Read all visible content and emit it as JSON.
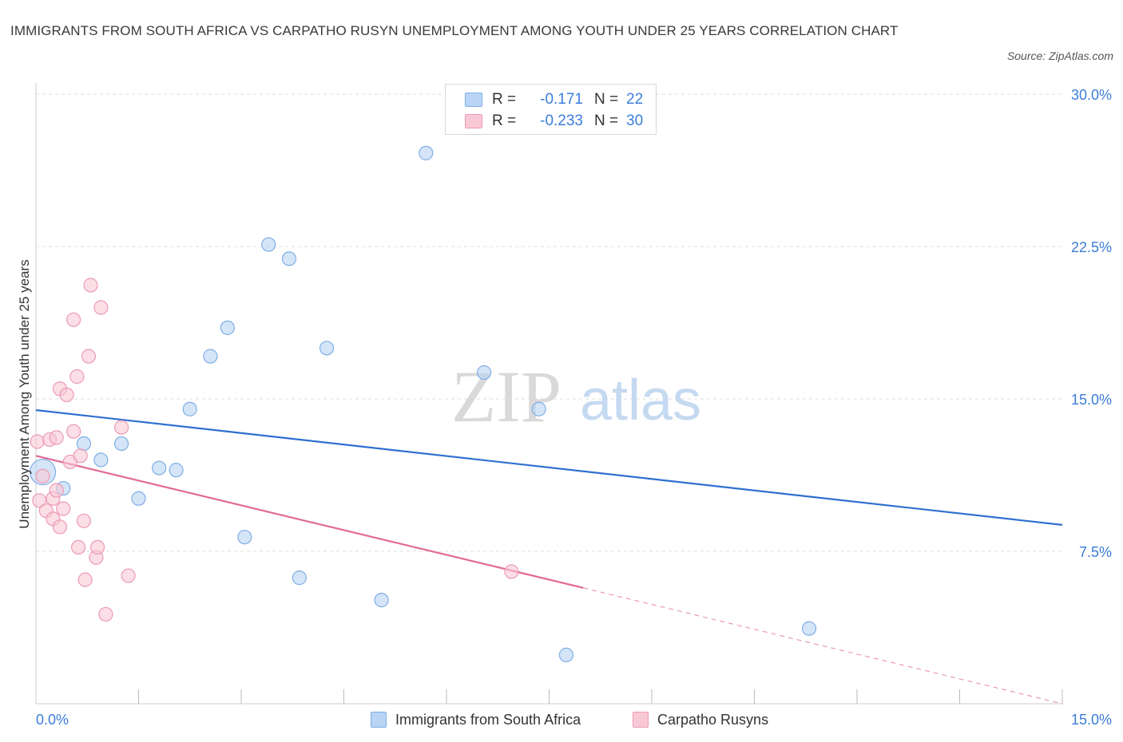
{
  "title": "IMMIGRANTS FROM SOUTH AFRICA VS CARPATHO RUSYN UNEMPLOYMENT AMONG YOUTH UNDER 25 YEARS CORRELATION CHART",
  "source": "Source: ZipAtlas.com",
  "watermark": {
    "zip": "ZIP",
    "atlas": "atlas"
  },
  "colors": {
    "blue_fill": "#b9d4f4",
    "blue_stroke": "#7eaee6",
    "blue_line": "#2f6fd0",
    "pink_fill": "#f9c8d6",
    "pink_stroke": "#ec9ab5",
    "pink_line": "#e26a93",
    "axis_label": "#3b7dd8",
    "grid": "#dddddd"
  },
  "legend": {
    "rows": [
      {
        "series": "Immigrants from South Africa",
        "r_label": "R =",
        "r_value": "-0.171",
        "n_label": "N =",
        "n_value": "22"
      },
      {
        "series": "Carpatho Rusyns",
        "r_label": "R =",
        "r_value": "-0.233",
        "n_label": "N =",
        "n_value": "30"
      }
    ]
  },
  "chart_data": {
    "type": "scatter",
    "title": "IMMIGRANTS FROM SOUTH AFRICA VS CARPATHO RUSYN UNEMPLOYMENT AMONG YOUTH UNDER 25 YEARS CORRELATION CHART",
    "xlabel": "",
    "ylabel": "Unemployment Among Youth under 25 years",
    "xlim": [
      0,
      15
    ],
    "ylim": [
      0,
      30
    ],
    "x_tick_labels": [
      {
        "value": 0,
        "label": "0.0%"
      },
      {
        "value": 15,
        "label": "15.0%"
      }
    ],
    "y_tick_labels": [
      {
        "value": 7.5,
        "label": "7.5%"
      },
      {
        "value": 15,
        "label": "15.0%"
      },
      {
        "value": 22.5,
        "label": "22.5%"
      },
      {
        "value": 30,
        "label": "30.0%"
      }
    ],
    "x_minor_ticks": [
      1.5,
      3.0,
      4.5,
      6.0,
      7.5,
      9.0,
      10.5,
      12.0,
      13.5,
      15.0
    ],
    "grid": true,
    "legend_position": "top-center",
    "series": [
      {
        "name": "Immigrants from South Africa",
        "color": "blue",
        "points": [
          {
            "x": 0.1,
            "y": 11.4,
            "large": true
          },
          {
            "x": 0.4,
            "y": 10.6
          },
          {
            "x": 0.7,
            "y": 12.8
          },
          {
            "x": 0.95,
            "y": 12.0
          },
          {
            "x": 1.25,
            "y": 12.8
          },
          {
            "x": 1.5,
            "y": 10.1
          },
          {
            "x": 1.8,
            "y": 11.6
          },
          {
            "x": 2.05,
            "y": 11.5
          },
          {
            "x": 2.25,
            "y": 14.5
          },
          {
            "x": 2.55,
            "y": 17.1
          },
          {
            "x": 2.8,
            "y": 18.5
          },
          {
            "x": 3.05,
            "y": 8.2
          },
          {
            "x": 3.4,
            "y": 22.6
          },
          {
            "x": 3.7,
            "y": 21.9
          },
          {
            "x": 3.85,
            "y": 6.2
          },
          {
            "x": 4.25,
            "y": 17.5
          },
          {
            "x": 5.05,
            "y": 5.1
          },
          {
            "x": 5.7,
            "y": 27.1
          },
          {
            "x": 6.55,
            "y": 16.3
          },
          {
            "x": 7.35,
            "y": 14.5
          },
          {
            "x": 7.75,
            "y": 2.4
          },
          {
            "x": 11.3,
            "y": 3.7
          }
        ],
        "trend": {
          "x0": 0,
          "y0": 14.45,
          "x1": 15,
          "y1": 8.8
        }
      },
      {
        "name": "Carpatho Rusyns",
        "color": "pink",
        "points": [
          {
            "x": 0.02,
            "y": 12.9
          },
          {
            "x": 0.05,
            "y": 10.0
          },
          {
            "x": 0.1,
            "y": 11.2
          },
          {
            "x": 0.15,
            "y": 9.5
          },
          {
            "x": 0.2,
            "y": 13.0
          },
          {
            "x": 0.25,
            "y": 10.1
          },
          {
            "x": 0.25,
            "y": 9.1
          },
          {
            "x": 0.3,
            "y": 10.5
          },
          {
            "x": 0.3,
            "y": 13.1
          },
          {
            "x": 0.35,
            "y": 8.7
          },
          {
            "x": 0.35,
            "y": 15.5
          },
          {
            "x": 0.4,
            "y": 9.6
          },
          {
            "x": 0.45,
            "y": 15.2
          },
          {
            "x": 0.5,
            "y": 11.9
          },
          {
            "x": 0.55,
            "y": 18.9
          },
          {
            "x": 0.55,
            "y": 13.4
          },
          {
            "x": 0.6,
            "y": 16.1
          },
          {
            "x": 0.62,
            "y": 7.7
          },
          {
            "x": 0.65,
            "y": 12.2
          },
          {
            "x": 0.7,
            "y": 9.0
          },
          {
            "x": 0.72,
            "y": 6.1
          },
          {
            "x": 0.77,
            "y": 17.1
          },
          {
            "x": 0.8,
            "y": 20.6
          },
          {
            "x": 0.88,
            "y": 7.2
          },
          {
            "x": 0.9,
            "y": 7.7
          },
          {
            "x": 0.95,
            "y": 19.5
          },
          {
            "x": 1.02,
            "y": 4.4
          },
          {
            "x": 1.25,
            "y": 13.6
          },
          {
            "x": 1.35,
            "y": 6.3
          },
          {
            "x": 6.95,
            "y": 6.5
          }
        ],
        "trend": {
          "x0": 0,
          "y0": 12.2,
          "x1": 8.0,
          "y1": 5.7
        },
        "trend_extension": {
          "x0": 8.0,
          "y0": 5.7,
          "x1": 15,
          "y1": 0.0
        }
      }
    ]
  }
}
